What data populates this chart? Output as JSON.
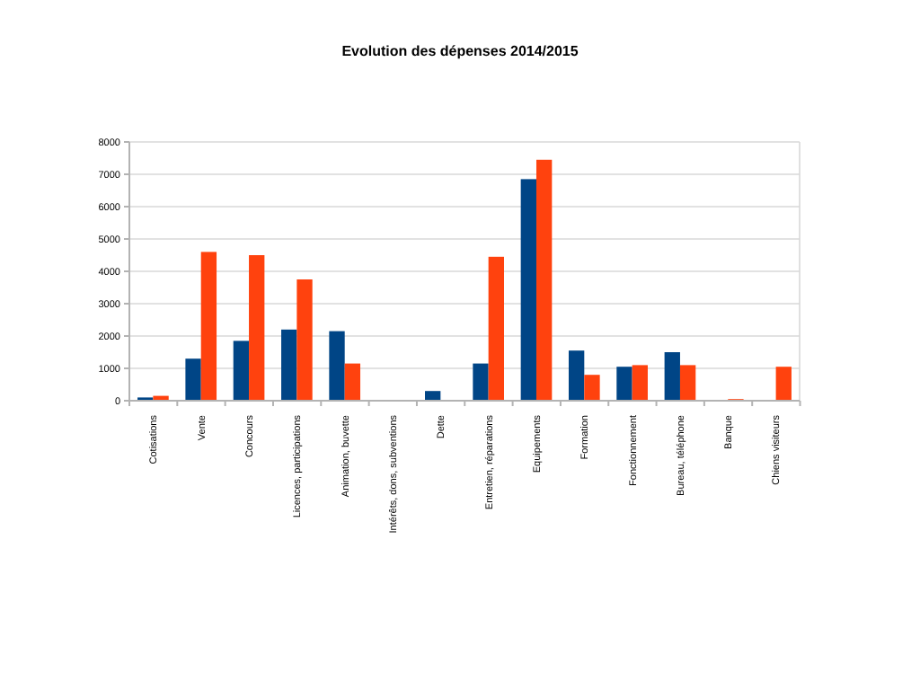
{
  "chart_data": {
    "type": "bar",
    "title": "Evolution des dépenses 2014/2015",
    "categories": [
      "Cotisations",
      "Vente",
      "Concours",
      "Licences, participations",
      "Animation, buvette",
      "Intérêts, dons, subventions",
      "Dette",
      "Entretien, réparations",
      "Equipements",
      "Formation",
      "Fonctionnement",
      "Bureau, téléphone",
      "Banque",
      "Chiens visiteurs"
    ],
    "series": [
      {
        "color": "#004586",
        "values": [
          100,
          1300,
          1850,
          2200,
          2150,
          0,
          300,
          1150,
          6850,
          1550,
          1050,
          1500,
          0,
          0
        ]
      },
      {
        "color": "#ff420e",
        "values": [
          150,
          4600,
          4500,
          3750,
          1150,
          0,
          0,
          4450,
          7450,
          800,
          1100,
          1100,
          50,
          1050
        ]
      }
    ],
    "ylim": [
      0,
      8000
    ],
    "yticks": [
      0,
      1000,
      2000,
      3000,
      4000,
      5000,
      6000,
      7000,
      8000
    ],
    "grid": "y"
  }
}
